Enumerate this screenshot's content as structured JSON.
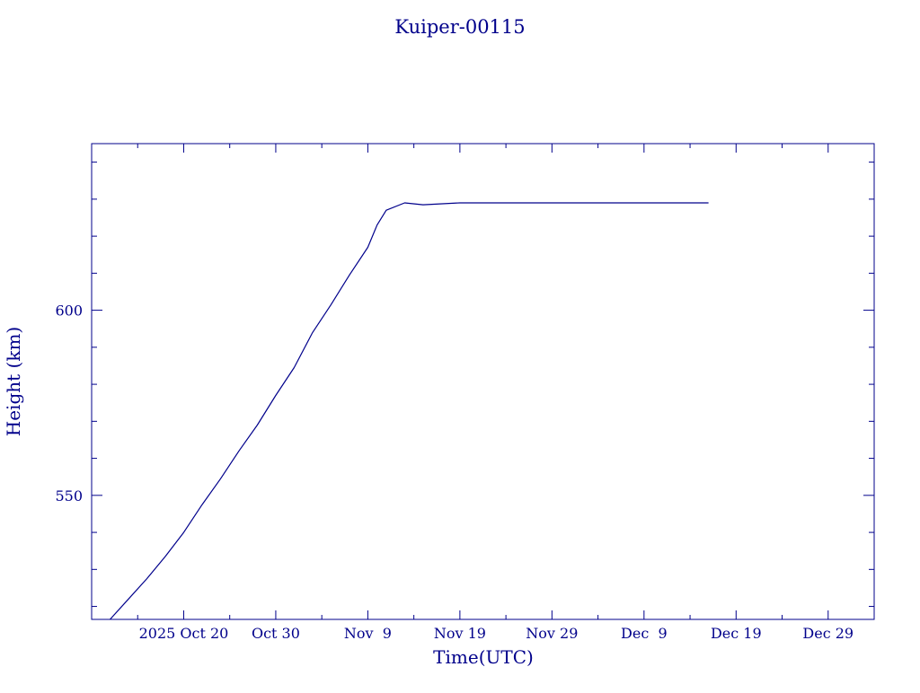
{
  "colors": {
    "ink": "#00008b",
    "background": "#ffffff"
  },
  "chart_data": {
    "type": "line",
    "title": "Kuiper-00115",
    "xlabel": "Time(UTC)",
    "ylabel": "Height (km)",
    "x_scale": "date",
    "xlim": [
      "2025-10-10",
      "2026-01-03"
    ],
    "ylim": [
      516.5,
      645
    ],
    "x_ticks": [
      {
        "date": "2025-10-20",
        "label": "2025 Oct 20"
      },
      {
        "date": "2025-10-30",
        "label": "Oct 30"
      },
      {
        "date": "2025-11-09",
        "label": "Nov  9"
      },
      {
        "date": "2025-11-19",
        "label": "Nov 19"
      },
      {
        "date": "2025-11-29",
        "label": "Nov 29"
      },
      {
        "date": "2025-12-09",
        "label": "Dec  9"
      },
      {
        "date": "2025-12-19",
        "label": "Dec 19"
      },
      {
        "date": "2025-12-29",
        "label": "Dec 29"
      }
    ],
    "y_ticks": [
      {
        "value": 550,
        "label": "550"
      },
      {
        "value": 600,
        "label": "600"
      }
    ],
    "grid": false,
    "series": [
      {
        "x": [
          "2025-10-12",
          "2025-10-14",
          "2025-10-16",
          "2025-10-18",
          "2025-10-20",
          "2025-10-22",
          "2025-10-24",
          "2025-10-26",
          "2025-10-28",
          "2025-10-30",
          "2025-11-01",
          "2025-11-03",
          "2025-11-05",
          "2025-11-07",
          "2025-11-09",
          "2025-11-10",
          "2025-11-11",
          "2025-11-13",
          "2025-11-15",
          "2025-11-19",
          "2025-11-24",
          "2025-11-29",
          "2025-12-04",
          "2025-12-09",
          "2025-12-14",
          "2025-12-16"
        ],
        "y": [
          516.5,
          522,
          527.5,
          533.5,
          540,
          547.5,
          554.5,
          562,
          569,
          577,
          584.5,
          594,
          601.5,
          609.5,
          617,
          623,
          627,
          629,
          628.5,
          629,
          629,
          629,
          629,
          629,
          629,
          629
        ]
      }
    ]
  }
}
